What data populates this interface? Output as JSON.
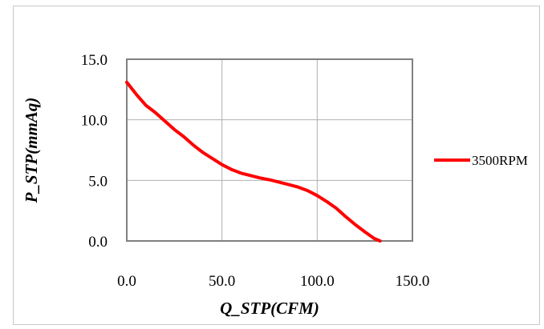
{
  "chart_data": {
    "type": "line",
    "title": "",
    "xlabel": "Q_STP(CFM)",
    "ylabel": "P_STP(mmAq)",
    "xlim": [
      0,
      150
    ],
    "ylim": [
      0,
      15
    ],
    "x_ticks": [
      0,
      50,
      100,
      150
    ],
    "x_tick_labels": [
      "0.0",
      "50.0",
      "100.0",
      "150.0"
    ],
    "y_ticks": [
      0,
      5,
      10,
      15
    ],
    "y_tick_labels": [
      "0.0",
      "5.0",
      "10.0",
      "15.0"
    ],
    "grid": true,
    "legend_position": "right",
    "series": [
      {
        "name": "3500RPM",
        "color": "#ff0000",
        "x": [
          0,
          5,
          10,
          15,
          20,
          25,
          30,
          35,
          40,
          45,
          50,
          55,
          60,
          65,
          70,
          75,
          80,
          85,
          90,
          95,
          100,
          105,
          110,
          115,
          120,
          125,
          130,
          133
        ],
        "y": [
          13.1,
          12.1,
          11.2,
          10.6,
          9.9,
          9.2,
          8.6,
          7.9,
          7.3,
          6.8,
          6.3,
          5.9,
          5.6,
          5.4,
          5.2,
          5.05,
          4.85,
          4.65,
          4.45,
          4.15,
          3.75,
          3.25,
          2.7,
          2.0,
          1.35,
          0.75,
          0.2,
          0.0
        ]
      }
    ]
  }
}
